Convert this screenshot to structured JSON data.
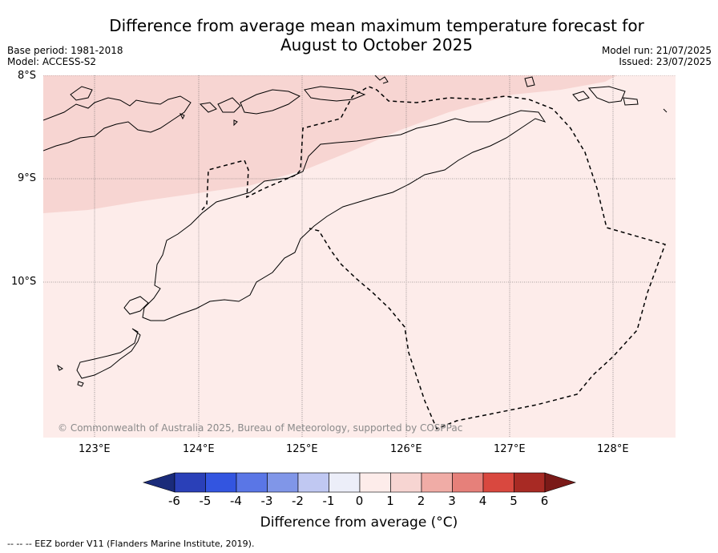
{
  "title_line1": "Difference from average mean maximum temperature forecast for",
  "title_line2": "August to October 2025",
  "base_period": "Base period: 1981-2018",
  "model": "Model: ACCESS-S2",
  "model_run": "Model run: 21/07/2025",
  "issued": "Issued: 23/07/2025",
  "lat_labels": [
    "8°S",
    "9°S",
    "10°S"
  ],
  "lon_labels": [
    "123°E",
    "124°E",
    "125°E",
    "126°E",
    "127°E",
    "128°E"
  ],
  "copyright": "© Commonwealth of Australia 2025, Bureau of Meteorology, supported by COSPPac",
  "colorbar": {
    "ticks": [
      "-6",
      "-5",
      "-4",
      "-3",
      "-2",
      "-1",
      "0",
      "1",
      "2",
      "3",
      "4",
      "5",
      "6"
    ],
    "label": "Difference from average (°C)",
    "colors": [
      "#1a2b7a",
      "#2a40b8",
      "#3355e0",
      "#5a76e6",
      "#8096e8",
      "#c0c8f2",
      "#eceef9",
      "#fdecea",
      "#f7d5d2",
      "#f0aca6",
      "#e6807a",
      "#d9483f",
      "#a82a24",
      "#7a1a18"
    ]
  },
  "legend_note": "-- -- -- EEZ border V11 (Flanders Marine Institute, 2019).",
  "region_colors": {
    "warm_1_2": "#f7d5d2",
    "warm_0_1": "#fdecea"
  }
}
